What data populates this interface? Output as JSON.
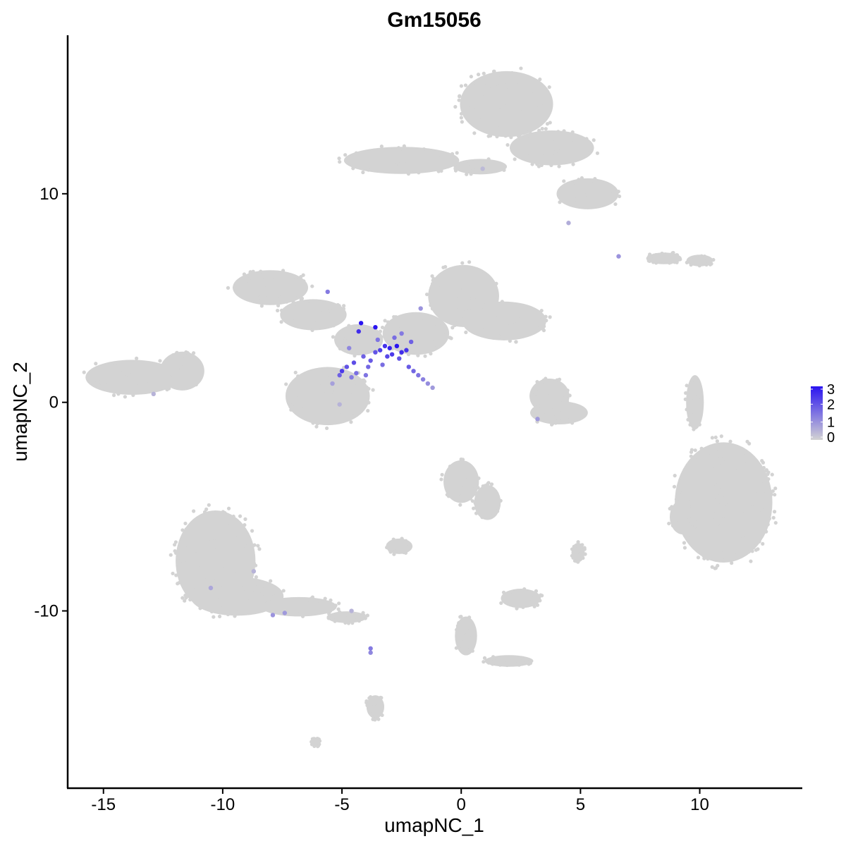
{
  "chart_data": {
    "type": "scatter",
    "title": "Gm15056",
    "xlabel": "umapNC_1",
    "ylabel": "umapNC_2",
    "xlim": [
      -16.5,
      14.3
    ],
    "ylim": [
      -18.5,
      17.6
    ],
    "x_ticks": [
      -15,
      -10,
      -5,
      0,
      5,
      10
    ],
    "x_tick_labels": [
      "-15",
      "-10",
      "-5",
      "0",
      "5",
      "10"
    ],
    "y_ticks": [
      -10,
      0,
      10
    ],
    "y_tick_labels": [
      "-10",
      "0",
      "10"
    ],
    "grid": false,
    "legend_position": "right",
    "legend": {
      "min": 0,
      "max": 3,
      "ticks": [
        3,
        2,
        1,
        0
      ],
      "tick_labels": [
        "3",
        "2",
        "1",
        "0"
      ],
      "color_low": "#d3d3d3",
      "color_high": "#2a14f0"
    },
    "colors": {
      "background_cells": "#d3d3d3",
      "high_expression": "#2a14f0",
      "axis": "#000000"
    },
    "clusters": [
      {
        "cx": 1.9,
        "cy": 14.3,
        "rx": 2.1,
        "ry": 1.7
      },
      {
        "cx": 3.8,
        "cy": 12.2,
        "rx": 1.9,
        "ry": 0.9
      },
      {
        "cx": 5.3,
        "cy": 10.0,
        "rx": 1.4,
        "ry": 0.8
      },
      {
        "cx": -2.5,
        "cy": 11.6,
        "rx": 2.6,
        "ry": 0.7
      },
      {
        "cx": 0.8,
        "cy": 11.3,
        "rx": 1.2,
        "ry": 0.4
      },
      {
        "cx": -8.0,
        "cy": 5.5,
        "rx": 1.7,
        "ry": 0.9
      },
      {
        "cx": -6.2,
        "cy": 4.2,
        "rx": 1.5,
        "ry": 0.8
      },
      {
        "cx": -4.3,
        "cy": 3.0,
        "rx": 1.1,
        "ry": 0.8
      },
      {
        "cx": 0.1,
        "cy": 5.1,
        "rx": 1.6,
        "ry": 1.6
      },
      {
        "cx": 1.8,
        "cy": 3.9,
        "rx": 1.9,
        "ry": 1.0
      },
      {
        "cx": -1.9,
        "cy": 3.3,
        "rx": 1.5,
        "ry": 1.1
      },
      {
        "cx": -5.6,
        "cy": 0.3,
        "rx": 1.9,
        "ry": 1.5
      },
      {
        "cx": -13.8,
        "cy": 1.2,
        "rx": 2.1,
        "ry": 0.9
      },
      {
        "cx": -11.7,
        "cy": 1.5,
        "rx": 1.0,
        "ry": 1.0
      },
      {
        "cx": 3.7,
        "cy": 0.3,
        "rx": 0.9,
        "ry": 0.9
      },
      {
        "cx": 4.1,
        "cy": -0.5,
        "rx": 1.3,
        "ry": 0.6
      },
      {
        "cx": 11.0,
        "cy": -4.8,
        "rx": 2.2,
        "ry": 3.1
      },
      {
        "cx": 9.3,
        "cy": -5.5,
        "rx": 0.6,
        "ry": 0.9
      },
      {
        "cx": 8.5,
        "cy": 6.9,
        "rx": 0.8,
        "ry": 0.3
      },
      {
        "cx": 10.0,
        "cy": 6.8,
        "rx": 0.6,
        "ry": 0.3
      },
      {
        "cx": 0.0,
        "cy": -3.8,
        "rx": 0.8,
        "ry": 1.1
      },
      {
        "cx": 1.1,
        "cy": -4.8,
        "rx": 0.6,
        "ry": 0.9
      },
      {
        "cx": -10.3,
        "cy": -7.6,
        "rx": 1.8,
        "ry": 2.6
      },
      {
        "cx": -9.4,
        "cy": -9.3,
        "rx": 2.1,
        "ry": 1.0
      },
      {
        "cx": -6.8,
        "cy": -9.8,
        "rx": 1.7,
        "ry": 0.5
      },
      {
        "cx": -4.8,
        "cy": -10.3,
        "rx": 0.9,
        "ry": 0.3
      },
      {
        "cx": -2.6,
        "cy": -6.9,
        "rx": 0.6,
        "ry": 0.4
      },
      {
        "cx": 2.5,
        "cy": -9.4,
        "rx": 0.9,
        "ry": 0.5
      },
      {
        "cx": -3.6,
        "cy": -14.6,
        "rx": 0.4,
        "ry": 0.6
      },
      {
        "cx": 0.2,
        "cy": -11.2,
        "rx": 0.5,
        "ry": 1.0
      },
      {
        "cx": 2.0,
        "cy": -12.4,
        "rx": 1.1,
        "ry": 0.3
      },
      {
        "cx": -6.1,
        "cy": -16.3,
        "rx": 0.2,
        "ry": 0.2
      },
      {
        "cx": 9.8,
        "cy": 0.0,
        "rx": 0.4,
        "ry": 1.4
      },
      {
        "cx": 4.9,
        "cy": -7.2,
        "rx": 0.3,
        "ry": 0.5
      }
    ],
    "expressing_cells": [
      {
        "x": -4.2,
        "y": 3.8,
        "v": 3.0
      },
      {
        "x": -3.6,
        "y": 3.6,
        "v": 3.0
      },
      {
        "x": -4.3,
        "y": 3.4,
        "v": 2.6
      },
      {
        "x": -2.7,
        "y": 2.7,
        "v": 3.0
      },
      {
        "x": -3.0,
        "y": 2.6,
        "v": 2.8
      },
      {
        "x": -3.2,
        "y": 2.7,
        "v": 2.5
      },
      {
        "x": -2.5,
        "y": 2.4,
        "v": 2.6
      },
      {
        "x": -3.4,
        "y": 2.5,
        "v": 2.3
      },
      {
        "x": -2.9,
        "y": 2.3,
        "v": 2.4
      },
      {
        "x": -2.3,
        "y": 2.5,
        "v": 2.5
      },
      {
        "x": -3.1,
        "y": 2.2,
        "v": 2.2
      },
      {
        "x": -3.6,
        "y": 2.4,
        "v": 2.0
      },
      {
        "x": -2.6,
        "y": 2.1,
        "v": 2.0
      },
      {
        "x": -4.1,
        "y": 2.2,
        "v": 1.8
      },
      {
        "x": -3.8,
        "y": 2.0,
        "v": 1.9
      },
      {
        "x": -4.5,
        "y": 1.9,
        "v": 2.1
      },
      {
        "x": -4.8,
        "y": 1.7,
        "v": 2.0
      },
      {
        "x": -5.0,
        "y": 1.5,
        "v": 2.4
      },
      {
        "x": -4.4,
        "y": 1.4,
        "v": 1.6
      },
      {
        "x": -3.9,
        "y": 1.7,
        "v": 1.7
      },
      {
        "x": -4.0,
        "y": 1.3,
        "v": 1.5
      },
      {
        "x": -4.6,
        "y": 1.2,
        "v": 1.4
      },
      {
        "x": -5.1,
        "y": 1.3,
        "v": 1.8
      },
      {
        "x": -3.3,
        "y": 1.8,
        "v": 1.6
      },
      {
        "x": -2.2,
        "y": 1.7,
        "v": 1.9
      },
      {
        "x": -2.0,
        "y": 1.5,
        "v": 1.7
      },
      {
        "x": -1.8,
        "y": 1.3,
        "v": 1.5
      },
      {
        "x": -1.6,
        "y": 1.1,
        "v": 1.3
      },
      {
        "x": -1.4,
        "y": 0.9,
        "v": 1.1
      },
      {
        "x": -1.2,
        "y": 0.7,
        "v": 0.9
      },
      {
        "x": -2.1,
        "y": 2.9,
        "v": 1.8
      },
      {
        "x": -2.8,
        "y": 3.1,
        "v": 1.6
      },
      {
        "x": -3.5,
        "y": 3.0,
        "v": 1.5
      },
      {
        "x": -4.7,
        "y": 2.6,
        "v": 1.2
      },
      {
        "x": -5.6,
        "y": 5.3,
        "v": 1.4
      },
      {
        "x": -1.7,
        "y": 4.5,
        "v": 1.0
      },
      {
        "x": -2.5,
        "y": 3.3,
        "v": 1.4
      },
      {
        "x": -3.8,
        "y": -11.8,
        "v": 1.4
      },
      {
        "x": -3.8,
        "y": -12.0,
        "v": 1.2
      },
      {
        "x": -7.9,
        "y": -10.2,
        "v": 1.0
      },
      {
        "x": -7.4,
        "y": -10.1,
        "v": 0.9
      },
      {
        "x": -10.5,
        "y": -8.9,
        "v": 0.7
      },
      {
        "x": -8.7,
        "y": -8.1,
        "v": 0.5
      },
      {
        "x": -5.4,
        "y": 0.9,
        "v": 0.8
      },
      {
        "x": -5.1,
        "y": -0.1,
        "v": 0.5
      },
      {
        "x": 6.6,
        "y": 7.0,
        "v": 1.0
      },
      {
        "x": 4.5,
        "y": 8.6,
        "v": 0.6
      },
      {
        "x": 3.2,
        "y": -0.8,
        "v": 0.9
      },
      {
        "x": 0.9,
        "y": 11.2,
        "v": 0.4
      },
      {
        "x": -12.9,
        "y": 0.4,
        "v": 0.5
      },
      {
        "x": -4.6,
        "y": -10.0,
        "v": 0.5
      }
    ]
  }
}
